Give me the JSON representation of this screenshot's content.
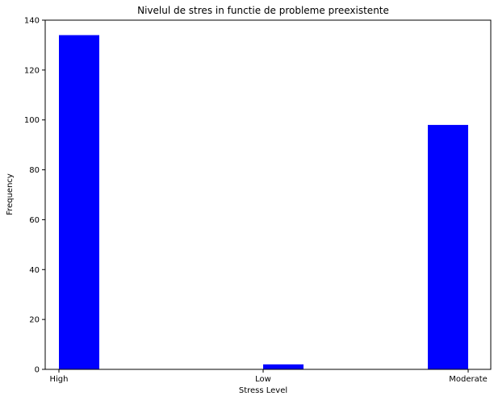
{
  "chart_data": {
    "type": "bar",
    "title": "Nivelul de stres in functie de probleme preexistente",
    "xlabel": "Stress Level",
    "ylabel": "Frequency",
    "categories": [
      "High",
      "Low",
      "Moderate"
    ],
    "values": [
      134,
      2,
      98
    ],
    "ylim": [
      0,
      140
    ],
    "yticks": [
      0,
      20,
      40,
      60,
      80,
      100,
      120,
      140
    ],
    "grid": false,
    "bar_color": "#0000ff"
  }
}
